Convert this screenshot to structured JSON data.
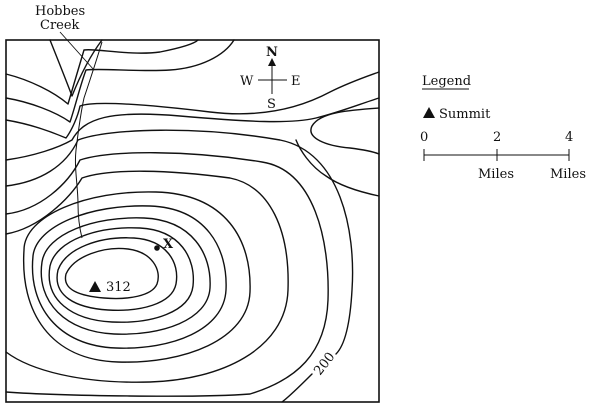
{
  "map": {
    "creek_label_line1": "Hobbes",
    "creek_label_line2": "Creek",
    "summit_elevation": "312",
    "contour_label": "200",
    "point_label": "X"
  },
  "compass": {
    "north": "N",
    "south": "S",
    "east": "E",
    "west": "W"
  },
  "legend": {
    "title": "Legend",
    "summit_label": "Summit",
    "scale_ticks": [
      "0",
      "2",
      "4"
    ],
    "scale_units": [
      "Miles",
      "Miles"
    ]
  },
  "colors": {
    "ink": "#111111",
    "background": "#ffffff"
  }
}
